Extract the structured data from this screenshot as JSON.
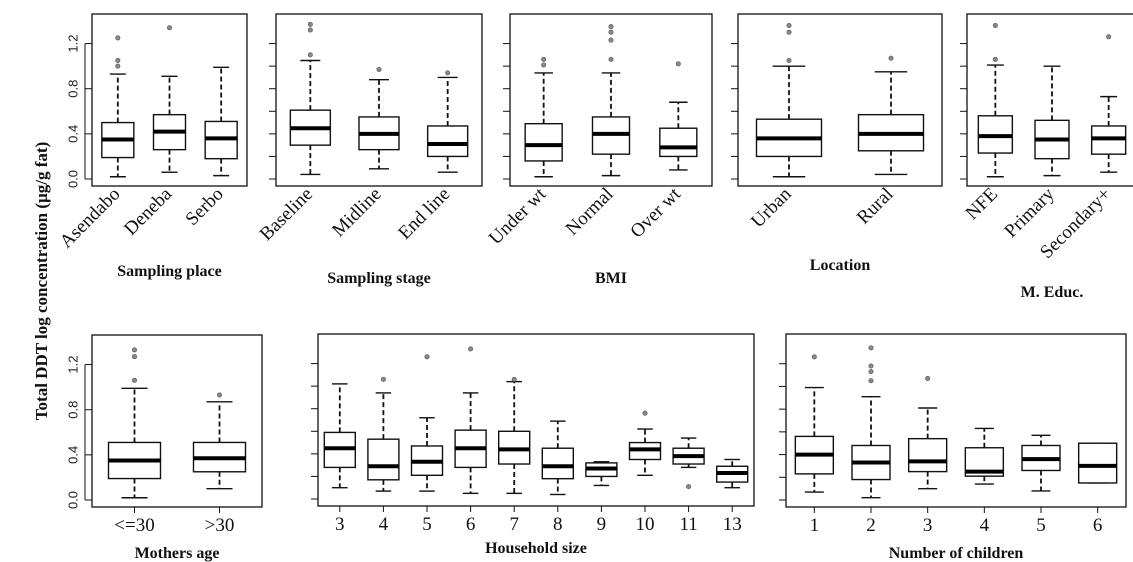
{
  "ylabel": "Total DDT log concentration (µg/g fat)",
  "chart_data": [
    {
      "type": "boxplot",
      "xlabel": "Sampling place",
      "ylim": [
        0,
        1.4
      ],
      "yticks": [
        0.0,
        0.4,
        0.8,
        1.2
      ],
      "show_yticklabels": true,
      "rotate": true,
      "categories": [
        "Asendabo",
        "Deneba",
        "Serbo"
      ],
      "boxes": [
        {
          "min": 0.02,
          "q1": 0.19,
          "median": 0.35,
          "q3": 0.5,
          "max": 0.93,
          "outliers": [
            1.0,
            1.05,
            1.25
          ]
        },
        {
          "min": 0.06,
          "q1": 0.26,
          "median": 0.42,
          "q3": 0.57,
          "max": 0.91,
          "outliers": [
            1.34
          ]
        },
        {
          "min": 0.03,
          "q1": 0.18,
          "median": 0.36,
          "q3": 0.51,
          "max": 0.99,
          "outliers": []
        }
      ]
    },
    {
      "type": "boxplot",
      "xlabel": "Sampling stage",
      "ylim": [
        0,
        1.4
      ],
      "yticks": [
        0.0,
        0.2,
        0.4,
        0.6,
        0.8,
        1.0,
        1.2
      ],
      "show_yticklabels": false,
      "rotate": true,
      "categories": [
        "Baseline",
        "Midline",
        "End line"
      ],
      "boxes": [
        {
          "min": 0.04,
          "q1": 0.3,
          "median": 0.45,
          "q3": 0.61,
          "max": 1.05,
          "outliers": [
            1.1,
            1.32,
            1.37
          ]
        },
        {
          "min": 0.09,
          "q1": 0.26,
          "median": 0.4,
          "q3": 0.55,
          "max": 0.88,
          "outliers": [
            0.97
          ]
        },
        {
          "min": 0.06,
          "q1": 0.2,
          "median": 0.31,
          "q3": 0.47,
          "max": 0.9,
          "outliers": [
            0.94
          ]
        }
      ]
    },
    {
      "type": "boxplot",
      "xlabel": "BMI",
      "ylim": [
        0,
        1.4
      ],
      "yticks": [
        0.0,
        0.2,
        0.4,
        0.6,
        0.8,
        1.0,
        1.2
      ],
      "show_yticklabels": false,
      "rotate": true,
      "categories": [
        "Under wt",
        "Normal",
        "Over wt"
      ],
      "boxes": [
        {
          "min": 0.02,
          "q1": 0.16,
          "median": 0.3,
          "q3": 0.49,
          "max": 0.94,
          "outliers": [
            1.01,
            1.06
          ]
        },
        {
          "min": 0.03,
          "q1": 0.22,
          "median": 0.4,
          "q3": 0.55,
          "max": 0.94,
          "outliers": [
            1.06,
            1.23,
            1.3,
            1.35
          ]
        },
        {
          "min": 0.08,
          "q1": 0.2,
          "median": 0.28,
          "q3": 0.45,
          "max": 0.68,
          "outliers": [
            1.02
          ]
        }
      ]
    },
    {
      "type": "boxplot",
      "xlabel": "Location",
      "ylim": [
        0,
        1.4
      ],
      "yticks": [
        0.0,
        0.2,
        0.4,
        0.6,
        0.8,
        1.0,
        1.2
      ],
      "show_yticklabels": false,
      "rotate": true,
      "categories": [
        "Urban",
        "Rural"
      ],
      "boxes": [
        {
          "min": 0.02,
          "q1": 0.2,
          "median": 0.36,
          "q3": 0.53,
          "max": 1.0,
          "outliers": [
            1.05,
            1.3,
            1.36
          ]
        },
        {
          "min": 0.04,
          "q1": 0.25,
          "median": 0.4,
          "q3": 0.57,
          "max": 0.95,
          "outliers": [
            1.07
          ]
        }
      ]
    },
    {
      "type": "boxplot",
      "xlabel": "M. Educ.",
      "ylim": [
        0,
        1.4
      ],
      "yticks": [
        0.0,
        0.2,
        0.4,
        0.6,
        0.8,
        1.0,
        1.2
      ],
      "show_yticklabels": false,
      "rotate": true,
      "categories": [
        "NFE",
        "Primary",
        "Secondary+"
      ],
      "boxes": [
        {
          "min": 0.02,
          "q1": 0.23,
          "median": 0.38,
          "q3": 0.56,
          "max": 1.01,
          "outliers": [
            1.06,
            1.36
          ]
        },
        {
          "min": 0.03,
          "q1": 0.18,
          "median": 0.35,
          "q3": 0.52,
          "max": 1.0,
          "outliers": []
        },
        {
          "min": 0.06,
          "q1": 0.22,
          "median": 0.36,
          "q3": 0.47,
          "max": 0.73,
          "outliers": [
            1.26
          ]
        }
      ]
    },
    {
      "type": "boxplot",
      "xlabel": "Mothers age",
      "ylim": [
        0,
        1.4
      ],
      "yticks": [
        0.0,
        0.4,
        0.8,
        1.2
      ],
      "show_yticklabels": true,
      "rotate": false,
      "categories": [
        "<=30",
        ">30"
      ],
      "boxes": [
        {
          "min": 0.02,
          "q1": 0.19,
          "median": 0.35,
          "q3": 0.51,
          "max": 0.99,
          "outliers": [
            1.06,
            1.27,
            1.33
          ]
        },
        {
          "min": 0.1,
          "q1": 0.25,
          "median": 0.37,
          "q3": 0.51,
          "max": 0.87,
          "outliers": [
            0.93
          ]
        }
      ]
    },
    {
      "type": "boxplot",
      "xlabel": "Household size",
      "ylim": [
        0,
        1.4
      ],
      "yticks": [
        0.0,
        0.2,
        0.4,
        0.6,
        0.8,
        1.0,
        1.2
      ],
      "show_yticklabels": false,
      "rotate": false,
      "categories": [
        "3",
        "4",
        "5",
        "6",
        "7",
        "8",
        "9",
        "10",
        "11",
        "13"
      ],
      "boxes": [
        {
          "min": 0.1,
          "q1": 0.28,
          "median": 0.45,
          "q3": 0.59,
          "max": 1.02,
          "outliers": []
        },
        {
          "min": 0.07,
          "q1": 0.17,
          "median": 0.29,
          "q3": 0.53,
          "max": 0.94,
          "outliers": [
            1.06
          ]
        },
        {
          "min": 0.07,
          "q1": 0.21,
          "median": 0.33,
          "q3": 0.47,
          "max": 0.72,
          "outliers": [
            1.26
          ]
        },
        {
          "min": 0.05,
          "q1": 0.28,
          "median": 0.45,
          "q3": 0.61,
          "max": 0.94,
          "outliers": [
            1.33
          ]
        },
        {
          "min": 0.05,
          "q1": 0.31,
          "median": 0.44,
          "q3": 0.6,
          "max": 1.04,
          "outliers": [
            1.06
          ]
        },
        {
          "min": 0.04,
          "q1": 0.18,
          "median": 0.29,
          "q3": 0.45,
          "max": 0.69,
          "outliers": []
        },
        {
          "min": 0.12,
          "q1": 0.2,
          "median": 0.27,
          "q3": 0.32,
          "max": 0.33,
          "outliers": []
        },
        {
          "min": 0.21,
          "q1": 0.35,
          "median": 0.44,
          "q3": 0.5,
          "max": 0.62,
          "outliers": [
            0.76
          ]
        },
        {
          "min": 0.28,
          "q1": 0.31,
          "median": 0.38,
          "q3": 0.45,
          "max": 0.54,
          "outliers": [
            0.11
          ]
        },
        {
          "min": 0.1,
          "q1": 0.15,
          "median": 0.23,
          "q3": 0.29,
          "max": 0.35,
          "outliers": []
        }
      ]
    },
    {
      "type": "boxplot",
      "xlabel": "Number of children",
      "ylim": [
        0,
        1.4
      ],
      "yticks": [
        0.0,
        0.2,
        0.4,
        0.6,
        0.8,
        1.0,
        1.2
      ],
      "show_yticklabels": false,
      "rotate": false,
      "categories": [
        "1",
        "2",
        "3",
        "4",
        "5",
        "6"
      ],
      "boxes": [
        {
          "min": 0.07,
          "q1": 0.23,
          "median": 0.4,
          "q3": 0.56,
          "max": 0.99,
          "outliers": [
            1.26
          ]
        },
        {
          "min": 0.02,
          "q1": 0.18,
          "median": 0.33,
          "q3": 0.48,
          "max": 0.91,
          "outliers": [
            1.05,
            1.13,
            1.18,
            1.34
          ]
        },
        {
          "min": 0.1,
          "q1": 0.25,
          "median": 0.34,
          "q3": 0.54,
          "max": 0.81,
          "outliers": [
            1.07
          ]
        },
        {
          "min": 0.14,
          "q1": 0.21,
          "median": 0.25,
          "q3": 0.46,
          "max": 0.63,
          "outliers": []
        },
        {
          "min": 0.08,
          "q1": 0.26,
          "median": 0.36,
          "q3": 0.48,
          "max": 0.57,
          "outliers": []
        },
        {
          "min": 0.15,
          "q1": 0.15,
          "median": 0.3,
          "q3": 0.5,
          "max": 0.5,
          "outliers": []
        }
      ]
    }
  ]
}
